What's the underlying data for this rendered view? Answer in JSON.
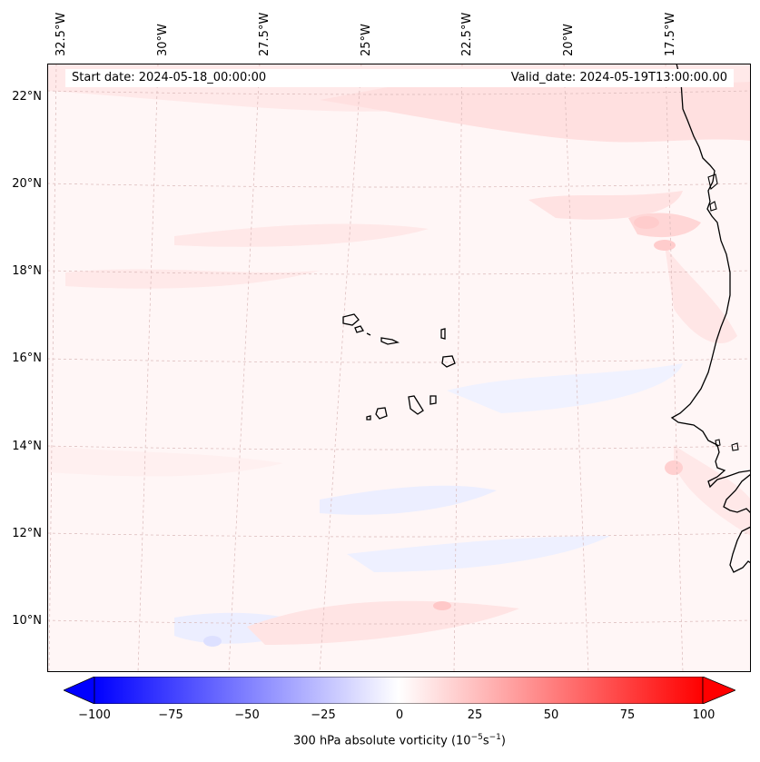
{
  "header": {
    "start_date": "Start date: 2024-05-18_00:00:00",
    "valid_date": "Valid_date: 2024-05-19T13:00:00.00"
  },
  "lon_labels": [
    "32.5°W",
    "30°W",
    "27.5°W",
    "25°W",
    "22.5°W",
    "20°W",
    "17.5°W"
  ],
  "lat_labels": [
    "22°N",
    "20°N",
    "18°N",
    "16°N",
    "14°N",
    "12°N",
    "10°N"
  ],
  "colorbar": {
    "title": "300 hPa absolute vorticity (10",
    "title_exp1": "−5",
    "title_mid": "s",
    "title_exp2": "−1",
    "title_end": ")",
    "ticks": [
      "−100",
      "−75",
      "−50",
      "−25",
      "0",
      "25",
      "50",
      "75",
      "100"
    ],
    "min": -100,
    "max": 100,
    "low_color": "#0000ff",
    "mid_color": "#ffffff",
    "high_color": "#ff0000"
  },
  "colors": {
    "ocean_pos": "#ffe6e6",
    "ocean_neg": "#eef0ff",
    "coast": "#000000",
    "grid": "#d9b8b8"
  }
}
